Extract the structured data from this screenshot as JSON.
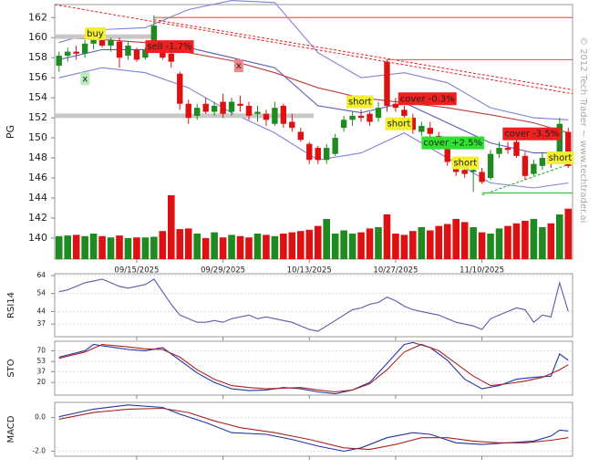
{
  "chart_data": [
    {
      "type": "candlestick",
      "y_label": "PG",
      "watermark": "© 2012 Tech Trader ~ www.techtrader.ai",
      "xlim": [
        -0.5,
        59.5
      ],
      "ylim": [
        137.9,
        163.3
      ],
      "xticks": [
        {
          "value": 9,
          "label": "09/15/2025"
        },
        {
          "value": 19,
          "label": "09/29/2025"
        },
        {
          "value": 29,
          "label": "10/13/2025"
        },
        {
          "value": 39,
          "label": "10/27/2025"
        },
        {
          "value": 49,
          "label": "11/10/2025"
        }
      ],
      "yticks": [
        140,
        142,
        144,
        146,
        148,
        150,
        152,
        154,
        156,
        158,
        160,
        162
      ],
      "up_color": "#1f8a1f",
      "down_color": "#dd1111",
      "open": [
        157.2,
        158.2,
        158.6,
        158.4,
        159.4,
        159.8,
        159.2,
        159.6,
        158.2,
        158.8,
        158,
        159,
        159.4,
        158.4,
        156.4,
        153.4,
        152.2,
        153.4,
        152.6,
        153.6,
        152.6,
        153.4,
        153.2,
        152.4,
        152.4,
        151.4,
        153.2,
        151.6,
        150.6,
        149.4,
        149,
        147.8,
        148.4,
        151,
        151.8,
        152.2,
        152.4,
        152,
        157.6,
        153.4,
        152.8,
        152,
        150.6,
        151,
        150.2,
        149.2,
        147.4,
        146.8,
        146.6,
        146.6,
        146,
        148.4,
        149,
        149.6,
        148.2,
        146.4,
        147.2,
        147.8,
        148,
        150.6
      ],
      "high": [
        158.6,
        159,
        159.2,
        159.8,
        160.2,
        160.4,
        160,
        160,
        159.6,
        159,
        159,
        162.2,
        159.6,
        158.8,
        156.6,
        153.8,
        153.4,
        154,
        153.6,
        154.4,
        154,
        154.2,
        153.6,
        153.2,
        152.8,
        153.6,
        153.4,
        152.4,
        151,
        149.6,
        149.2,
        149.4,
        150.4,
        152.2,
        152.6,
        152.8,
        152.6,
        153.6,
        157.8,
        154,
        153.2,
        152.4,
        151.6,
        151.6,
        150.6,
        149.4,
        148,
        147.4,
        147,
        147,
        148.8,
        149.6,
        149.6,
        150,
        148.6,
        147.8,
        148.6,
        148.4,
        152,
        151
      ],
      "low": [
        156.6,
        157.6,
        157.8,
        158,
        158.8,
        159,
        158.6,
        157,
        157.8,
        157.6,
        157.8,
        158.8,
        157.8,
        157,
        152.8,
        151.4,
        151.8,
        152.4,
        152.2,
        152,
        152.2,
        152.6,
        151.8,
        151.6,
        151.2,
        151.2,
        151,
        150.6,
        149.6,
        147.4,
        147.4,
        147.4,
        148.2,
        150.6,
        151.2,
        151.6,
        151.2,
        151.6,
        152.6,
        152.6,
        151.8,
        150.4,
        150.2,
        150,
        148.8,
        147.2,
        146.2,
        146,
        144.6,
        145.4,
        145.8,
        148,
        148.4,
        148,
        145.8,
        146.2,
        146.8,
        147,
        147.8,
        147
      ],
      "close": [
        158.2,
        158.6,
        158.4,
        159.4,
        160,
        159.2,
        159.8,
        158,
        159.2,
        157.8,
        158.8,
        161.2,
        158,
        157.6,
        153.4,
        152,
        153,
        152.6,
        153.2,
        152.4,
        153.6,
        153.2,
        152.2,
        152.6,
        151.8,
        153,
        151.4,
        151,
        149.8,
        147.8,
        147.8,
        149,
        150,
        151.8,
        152.2,
        152,
        151.6,
        153,
        153.2,
        153,
        152.2,
        150.8,
        151.2,
        150.4,
        149,
        147.6,
        146.6,
        146.4,
        146.8,
        145.6,
        148.4,
        149,
        148.8,
        148.2,
        146.2,
        147.4,
        148,
        147.4,
        151.4,
        147.2
      ],
      "volume": [
        36,
        37,
        38,
        36,
        40,
        36,
        34,
        37,
        33,
        34,
        34,
        35,
        44,
        100,
        47,
        48,
        40,
        33,
        42,
        34,
        38,
        36,
        34,
        40,
        38,
        36,
        40,
        42,
        44,
        46,
        52,
        63,
        40,
        45,
        40,
        42,
        48,
        50,
        70,
        40,
        38,
        44,
        50,
        45,
        52,
        55,
        63,
        58,
        50,
        42,
        40,
        48,
        52,
        56,
        60,
        63,
        50,
        56,
        70,
        79
      ],
      "volume_lim": [
        0,
        100
      ],
      "series": [
        {
          "color": "#8080d8",
          "x": [
            0,
            5,
            10,
            15,
            20,
            25,
            30,
            35,
            40,
            45,
            50,
            55,
            59
          ],
          "values": [
            159.5,
            160.8,
            161,
            162.8,
            163.7,
            163.5,
            158.5,
            156,
            156.5,
            155.5,
            153,
            152,
            151.8
          ]
        },
        {
          "color": "#8080d8",
          "x": [
            0,
            5,
            10,
            15,
            20,
            25,
            30,
            35,
            40,
            45,
            50,
            55,
            59
          ],
          "values": [
            156,
            157,
            156.5,
            155,
            152.5,
            150.5,
            147.8,
            148.5,
            150.5,
            148,
            145.5,
            145,
            145.5
          ]
        },
        {
          "color": "#5a5ab8",
          "x": [
            0,
            5,
            10,
            15,
            20,
            25,
            30,
            35,
            40,
            45,
            50,
            55,
            59
          ],
          "values": [
            157.8,
            158.8,
            158.8,
            159,
            158,
            157,
            153.2,
            152.5,
            153.5,
            151.5,
            149.5,
            148.5,
            148.5
          ]
        },
        {
          "color": "#c03a3a",
          "x": [
            0,
            5,
            10,
            15,
            20,
            25,
            30,
            35,
            40,
            45,
            50,
            55,
            59
          ],
          "values": [
            160,
            159.8,
            159.5,
            158.5,
            157.7,
            156.5,
            155,
            154,
            153.5,
            153,
            152.3,
            151.5,
            150.5
          ]
        }
      ],
      "trendlines": [
        {
          "x": [
            -0.5,
            59.5
          ],
          "y": [
            163.3,
            154.4
          ],
          "color": "#dd2222",
          "dash": true,
          "width": 1
        },
        {
          "x": [
            11,
            59.5
          ],
          "y": [
            161.8,
            154.8
          ],
          "color": "#dd2222",
          "dash": true,
          "width": 1
        },
        {
          "x": [
            49,
            59.5
          ],
          "y": [
            144.3,
            147.5
          ],
          "color": "#22aa22",
          "dash": true,
          "width": 1
        },
        {
          "x": [
            11,
            59.5
          ],
          "y": [
            162,
            162
          ],
          "color": "#dd6666",
          "dash": false,
          "width": 1.2
        },
        {
          "x": [
            38,
            59.5
          ],
          "y": [
            157.8,
            157.8
          ],
          "color": "#dd6666",
          "dash": false,
          "width": 1.2
        },
        {
          "x": [
            49,
            59.5
          ],
          "y": [
            144.5,
            144.5
          ],
          "color": "#44bb44",
          "dash": false,
          "width": 1.2
        },
        {
          "x": [
            -0.5,
            11
          ],
          "y": [
            160.1,
            160.1
          ],
          "color": "#c8c8c8",
          "dash": false,
          "width": 5
        },
        {
          "x": [
            -0.5,
            29.5
          ],
          "y": [
            152.2,
            152.2
          ],
          "color": "#c8c8c8",
          "dash": false,
          "width": 5
        }
      ],
      "signals": [
        {
          "text": "buy",
          "x": 3,
          "y": 160.4,
          "color": "#f2ee30"
        },
        {
          "text": "x",
          "x": 2.5,
          "y": 155.9,
          "color": "#b8ecb8"
        },
        {
          "text": "sell -1.7%",
          "x": 10,
          "y": 159.1,
          "color": "#ee2020"
        },
        {
          "text": "x",
          "x": 20.3,
          "y": 157.2,
          "color": "#f08888"
        },
        {
          "text": "short",
          "x": 33.3,
          "y": 153.6,
          "color": "#f2ee30"
        },
        {
          "text": "cover -0.3%",
          "x": 39.3,
          "y": 153.9,
          "color": "#ee2020"
        },
        {
          "text": "short",
          "x": 37.8,
          "y": 151.4,
          "color": "#f2ee30"
        },
        {
          "text": "cover +2.5%",
          "x": 42,
          "y": 149.5,
          "color": "#30e030"
        },
        {
          "text": "short",
          "x": 45.5,
          "y": 147.5,
          "color": "#f2ee30"
        },
        {
          "text": "cover -3.5%",
          "x": 51.4,
          "y": 150.4,
          "color": "#ee2020"
        },
        {
          "text": "short",
          "x": 56.5,
          "y": 148,
          "color": "#f2ee30"
        }
      ]
    },
    {
      "type": "line",
      "y_label": "RSI14",
      "xlim": [
        -0.5,
        59.5
      ],
      "ylim": [
        30,
        65
      ],
      "yticks": [
        37,
        44,
        54,
        64
      ],
      "series": [
        {
          "color": "#5a5aaa",
          "values": [
            55,
            56,
            58,
            60,
            61,
            62,
            60,
            58,
            57,
            58,
            59,
            62,
            55,
            48,
            42,
            40,
            38,
            38,
            39,
            38,
            40,
            41,
            42,
            40,
            41,
            40,
            39,
            38,
            36,
            34,
            33,
            36,
            39,
            42,
            45,
            46,
            48,
            49,
            52,
            50,
            47,
            45,
            44,
            43,
            42,
            40,
            38,
            37,
            36,
            34,
            40,
            42,
            44,
            46,
            45,
            38,
            42,
            41,
            60,
            44
          ]
        }
      ]
    },
    {
      "type": "line",
      "y_label": "STO",
      "xlim": [
        -0.5,
        59.5
      ],
      "ylim": [
        0,
        85
      ],
      "yticks": [
        20,
        37,
        53,
        70
      ],
      "series": [
        {
          "color": "#2233aa",
          "x": [
            0,
            3,
            4,
            5,
            8,
            10,
            12,
            14,
            16,
            18,
            20,
            22,
            24,
            26,
            28,
            30,
            32,
            34,
            36,
            38,
            40,
            41,
            43,
            45,
            47,
            49,
            51,
            53,
            55,
            57,
            58,
            59
          ],
          "values": [
            60,
            70,
            80,
            78,
            72,
            70,
            75,
            55,
            35,
            20,
            10,
            7,
            8,
            12,
            10,
            5,
            2,
            8,
            20,
            50,
            80,
            83,
            75,
            55,
            25,
            10,
            15,
            25,
            28,
            30,
            65,
            55
          ]
        },
        {
          "color": "#aa2222",
          "x": [
            0,
            3,
            5,
            8,
            10,
            12,
            14,
            16,
            18,
            20,
            22,
            24,
            26,
            28,
            30,
            32,
            34,
            36,
            38,
            40,
            42,
            44,
            46,
            48,
            50,
            52,
            54,
            56,
            58,
            59
          ],
          "values": [
            58,
            68,
            80,
            76,
            73,
            72,
            60,
            40,
            25,
            15,
            12,
            10,
            11,
            12,
            8,
            5,
            8,
            18,
            40,
            68,
            80,
            70,
            50,
            30,
            15,
            18,
            22,
            28,
            40,
            48
          ]
        }
      ]
    },
    {
      "type": "line",
      "y_label": "MACD",
      "xlim": [
        -0.5,
        59.5
      ],
      "ylim": [
        -2.3,
        0.9
      ],
      "yticks": [
        {
          "value": 0,
          "label": "0.0"
        },
        {
          "value": -2,
          "label": "-2.0"
        }
      ],
      "series": [
        {
          "color": "#2233aa",
          "x": [
            0,
            4,
            8,
            12,
            14,
            17,
            20,
            24,
            27,
            30,
            33,
            35,
            38,
            41,
            43,
            46,
            49,
            52,
            55,
            57,
            58,
            59
          ],
          "values": [
            0.05,
            0.5,
            0.75,
            0.6,
            0.2,
            -0.3,
            -0.9,
            -1.0,
            -1.3,
            -1.7,
            -2.0,
            -1.8,
            -1.2,
            -0.9,
            -1.0,
            -1.5,
            -1.6,
            -1.5,
            -1.4,
            -1.1,
            -0.75,
            -0.8
          ]
        },
        {
          "color": "#aa2222",
          "x": [
            0,
            4,
            8,
            12,
            15,
            18,
            21,
            25,
            29,
            33,
            36,
            39,
            42,
            45,
            48,
            51,
            54,
            57,
            59
          ],
          "values": [
            -0.1,
            0.3,
            0.5,
            0.55,
            0.3,
            -0.2,
            -0.6,
            -0.9,
            -1.3,
            -1.8,
            -1.9,
            -1.6,
            -1.2,
            -1.2,
            -1.4,
            -1.5,
            -1.5,
            -1.35,
            -1.2
          ]
        }
      ]
    }
  ]
}
